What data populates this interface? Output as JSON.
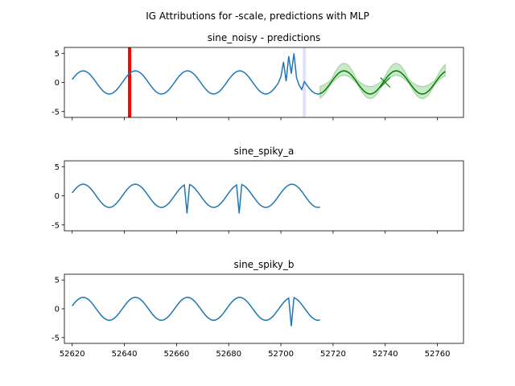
{
  "chart_data": {
    "suptitle": "IG Attributions for -scale, predictions with MLP",
    "x_ticks": [
      52620,
      52640,
      52660,
      52680,
      52700,
      52720,
      52740,
      52760
    ],
    "xlim": [
      52617,
      52770
    ],
    "panels": [
      {
        "title": "sine_noisy - predictions",
        "type": "line",
        "ylim": [
          -6,
          6
        ],
        "y_ticks": [
          -5,
          0,
          5
        ],
        "series": [
          {
            "color": "#1f77b4",
            "x_start": 52620,
            "x_end": 52715,
            "kind": "sine_noisy"
          }
        ],
        "prediction": {
          "color": "#008000",
          "band_color": "#2ca02c",
          "x_start": 52715,
          "x_end": 52763
        },
        "markers": [
          {
            "x": 52642,
            "color": "#ff0000",
            "kind": "attribution-line"
          },
          {
            "x": 52709,
            "color": "#e0e0ff",
            "kind": "attribution-band"
          }
        ],
        "cross": {
          "x": 52740,
          "y": 0
        }
      },
      {
        "title": "sine_spiky_a",
        "type": "line",
        "ylim": [
          -6,
          6
        ],
        "y_ticks": [
          -5,
          0,
          5
        ],
        "series": [
          {
            "color": "#1f77b4",
            "x_start": 52620,
            "x_end": 52715,
            "kind": "sine_spiky",
            "spikes": [
              52664,
              52684
            ]
          }
        ]
      },
      {
        "title": "sine_spiky_b",
        "type": "line",
        "ylim": [
          -6,
          6
        ],
        "y_ticks": [
          -5,
          0,
          5
        ],
        "series": [
          {
            "color": "#1f77b4",
            "x_start": 52620,
            "x_end": 52715,
            "kind": "sine_spiky",
            "spikes": [
              52704
            ]
          }
        ]
      }
    ]
  }
}
